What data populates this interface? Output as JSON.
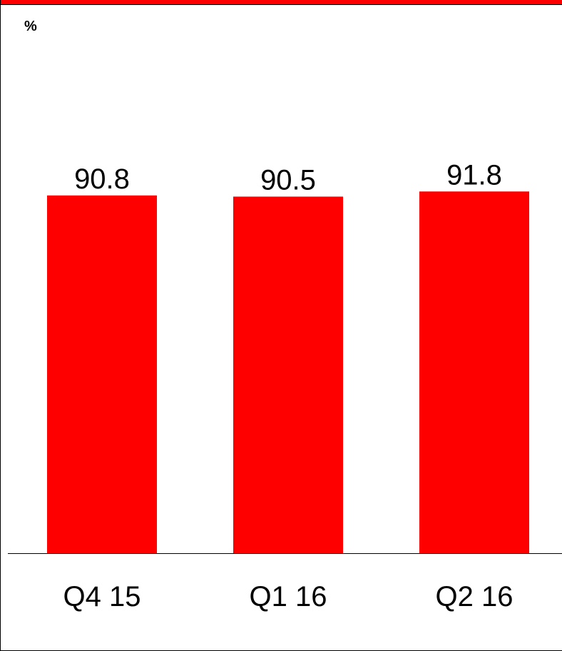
{
  "chart_data": {
    "type": "bar",
    "unit_label": "%",
    "categories": [
      "Q4 15",
      "Q1 16",
      "Q2 16"
    ],
    "values": [
      90.8,
      90.5,
      91.8
    ],
    "value_labels": [
      "90.8",
      "90.5",
      "91.8"
    ],
    "ylim": [
      0,
      100
    ],
    "grid": false,
    "legend": "none",
    "colors": {
      "bar": "#ff0000",
      "accent": "#ff0000",
      "axis": "#000000"
    }
  }
}
